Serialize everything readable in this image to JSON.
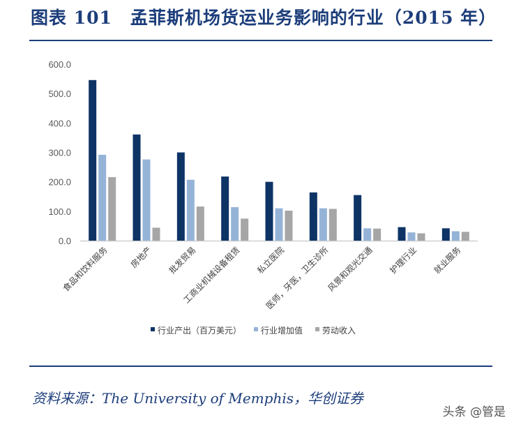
{
  "header": {
    "title": "图表 101　孟菲斯机场货运业务影响的行业（2015 年）"
  },
  "footer": {
    "source": "资料来源：The University of Memphis，华创证券",
    "watermark": "头条 @管是"
  },
  "chart_data": {
    "type": "bar",
    "categories": [
      "食品和饮料服务",
      "房地产",
      "批发贸易",
      "工商业机械设备租赁",
      "私立医院",
      "医师，牙医，卫生诊所",
      "风景和观光交通",
      "护理行业",
      "就业服务"
    ],
    "series": [
      {
        "name": "行业产出（百万美元）",
        "color": "#0e3466",
        "values": [
          546,
          361,
          300,
          218,
          200,
          164,
          155,
          46,
          42
        ]
      },
      {
        "name": "行业增加值",
        "color": "#95b3d7",
        "values": [
          292,
          276,
          207,
          114,
          110,
          110,
          42,
          28,
          32
        ]
      },
      {
        "name": "劳动收入",
        "color": "#a6a6a6",
        "values": [
          216,
          44,
          116,
          75,
          102,
          108,
          41,
          25,
          30
        ]
      }
    ],
    "ylim": [
      0,
      600
    ],
    "yticks": [
      "0.0",
      "100.0",
      "200.0",
      "300.0",
      "400.0",
      "500.0",
      "600.0"
    ],
    "xlabel": "",
    "ylabel": "",
    "grid": false,
    "legend": "bottom"
  }
}
